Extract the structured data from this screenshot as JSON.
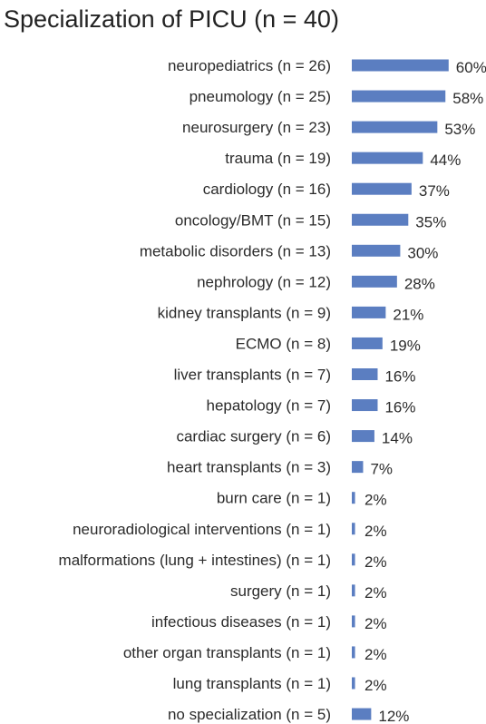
{
  "chart_data": {
    "type": "bar",
    "orientation": "horizontal",
    "title": "Specialization of PICU (n = 40)",
    "xlabel": "",
    "ylabel": "",
    "xlim": [
      0,
      100
    ],
    "grid": false,
    "legend": "none",
    "bar_color": "#5b7ec1",
    "categories": [
      "neuropediatrics (n = 26)",
      "pneumology (n = 25)",
      "neurosurgery (n = 23)",
      "trauma (n = 19)",
      "cardiology (n = 16)",
      "oncology/BMT (n = 15)",
      "metabolic disorders (n = 13)",
      "nephrology (n = 12)",
      "kidney transplants (n = 9)",
      "ECMO (n = 8)",
      "liver transplants (n = 7)",
      "hepatology (n = 7)",
      "cardiac surgery (n = 6)",
      "heart transplants (n = 3)",
      "burn care (n = 1)",
      "neuroradiological interventions (n = 1)",
      "malformations (lung + intestines) (n = 1)",
      "surgery (n = 1)",
      "infectious diseases (n = 1)",
      "other organ transplants (n = 1)",
      "lung transplants (n = 1)",
      "no specialization (n = 5)"
    ],
    "values": [
      60,
      58,
      53,
      44,
      37,
      35,
      30,
      28,
      21,
      19,
      16,
      16,
      14,
      7,
      2,
      2,
      2,
      2,
      2,
      2,
      2,
      12
    ],
    "value_labels": [
      "60%",
      "58%",
      "53%",
      "44%",
      "37%",
      "35%",
      "30%",
      "28%",
      "21%",
      "19%",
      "16%",
      "16%",
      "14%",
      "7%",
      "2%",
      "2%",
      "2%",
      "2%",
      "2%",
      "2%",
      "2%",
      "12%"
    ]
  }
}
